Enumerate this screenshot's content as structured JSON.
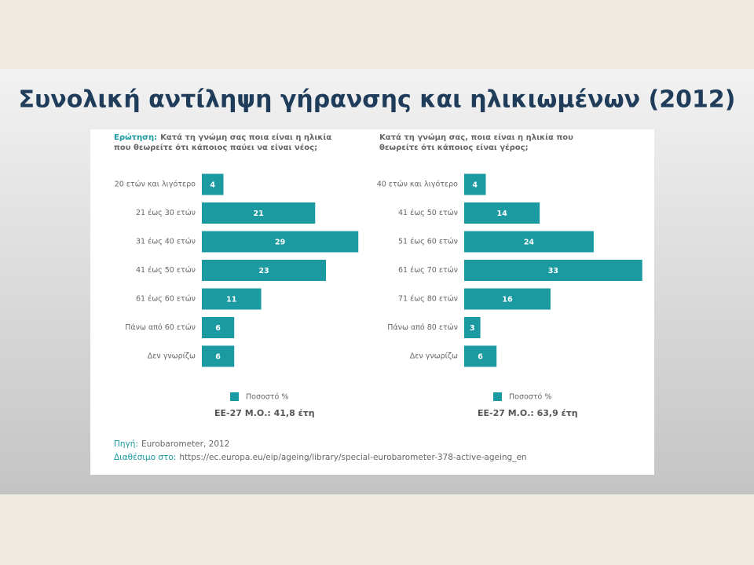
{
  "title": "Συνολική αντίληψη γήρανσης και ηλικιωμένων (2012)",
  "chart_data": [
    {
      "type": "bar",
      "orientation": "horizontal",
      "question_label": "Ερώτηση:",
      "question_lines": [
        "Κατά τη γνώμη σας ποια είναι η ηλικία",
        "που θεωρείτε ότι κάποιος παύει να είναι νέος;"
      ],
      "categories": [
        "20 ετών και λιγότερο",
        "21 έως 30 ετών",
        "31 έως 40 ετών",
        "41 έως 50 ετών",
        "61 έως 60 ετών",
        "Πάνω από 60 ετών",
        "Δεν γνωρίζω"
      ],
      "series": [
        {
          "name": "Ποσοστό %",
          "color": "#1b9aa1",
          "values": [
            4,
            21,
            29,
            23,
            11,
            6,
            6
          ]
        }
      ],
      "average": "ΕΕ-27 Μ.Ο.: 41,8 έτη"
    },
    {
      "type": "bar",
      "orientation": "horizontal",
      "question_lines": [
        "Κατά τη γνώμη σας, ποια είναι η ηλικία που",
        "θεωρείτε ότι κάποιος είναι γέρος;"
      ],
      "categories": [
        "40 ετών και λιγότερο",
        "41 έως 50 ετών",
        "51 έως 60 ετών",
        "61 έως 70 ετών",
        "71 έως 80 ετών",
        "Πάνω από 80 ετών",
        "Δεν γνωρίζω"
      ],
      "series": [
        {
          "name": "Ποσοστό %",
          "color": "#1b9aa1",
          "values": [
            4,
            14,
            24,
            33,
            16,
            3,
            6
          ]
        }
      ],
      "average": "ΕΕ-27 Μ.Ο.: 63,9 έτη"
    }
  ],
  "source": {
    "label": "Πηγή:",
    "text": "Eurobarometer, 2012"
  },
  "availability": {
    "label": "Διαθέσιμο στο:",
    "text": "https://ec.europa.eu/eip/ageing/library/special-eurobarometer-378-active-ageing_en"
  }
}
